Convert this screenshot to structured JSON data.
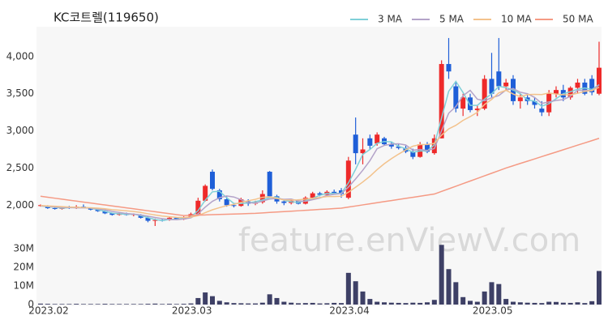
{
  "watermark": "feature.enViewV.com",
  "chart_data": [
    {
      "type": "candlestick",
      "title": "KC코트렐(119650)",
      "categories": [
        "2023.02",
        null,
        null,
        null,
        null,
        null,
        null,
        null,
        null,
        null,
        null,
        null,
        null,
        null,
        null,
        null,
        null,
        null,
        null,
        null,
        "2023.03",
        null,
        null,
        null,
        null,
        null,
        null,
        null,
        null,
        null,
        null,
        null,
        null,
        null,
        null,
        null,
        null,
        null,
        null,
        null,
        null,
        null,
        "2023.04",
        null,
        null,
        null,
        null,
        null,
        null,
        null,
        null,
        null,
        null,
        null,
        null,
        null,
        null,
        null,
        null,
        null,
        null,
        null,
        "2023.05",
        null,
        null,
        null,
        null,
        null,
        null,
        null,
        null,
        null,
        null,
        null,
        null,
        null,
        null,
        null,
        null
      ],
      "open": [
        1990,
        1990,
        1960,
        1950,
        1970,
        1960,
        1980,
        1960,
        1940,
        1920,
        1890,
        1870,
        1880,
        1870,
        1870,
        1830,
        1790,
        1800,
        1800,
        1830,
        1810,
        1840,
        1880,
        2060,
        2450,
        2200,
        2080,
        2000,
        1990,
        2050,
        2020,
        2040,
        2450,
        2120,
        2050,
        2030,
        2060,
        2020,
        2100,
        2160,
        2140,
        2180,
        2200,
        2100,
        2950,
        2700,
        2900,
        2830,
        2900,
        2820,
        2790,
        2770,
        2720,
        2650,
        2820,
        2700,
        2900,
        3900,
        3600,
        3300,
        3450,
        3280,
        3300,
        3700,
        3800,
        3600,
        3700,
        3400,
        3450,
        3400,
        3300,
        3250,
        3500,
        3550,
        3450,
        3580,
        3650,
        3700,
        3500
      ],
      "high": [
        2010,
        2000,
        1980,
        1980,
        1990,
        2000,
        2010,
        1970,
        1950,
        1930,
        1900,
        1900,
        1900,
        1890,
        1880,
        1850,
        1820,
        1820,
        1840,
        1840,
        1850,
        1900,
        2100,
        2280,
        2480,
        2220,
        2120,
        2020,
        2100,
        2080,
        2060,
        2200,
        2460,
        2140,
        2080,
        2080,
        2080,
        2120,
        2180,
        2180,
        2200,
        2210,
        2230,
        2650,
        3180,
        2900,
        2950,
        2980,
        2920,
        2850,
        2820,
        2800,
        2760,
        2850,
        2850,
        2950,
        3950,
        4250,
        3650,
        3500,
        3500,
        3350,
        3750,
        4050,
        4250,
        3700,
        3750,
        3500,
        3500,
        3450,
        3400,
        3550,
        3600,
        3620,
        3600,
        3700,
        3700,
        3750,
        4200
      ],
      "low": [
        1980,
        1950,
        1940,
        1940,
        1950,
        1950,
        1960,
        1930,
        1910,
        1880,
        1860,
        1860,
        1860,
        1850,
        1820,
        1770,
        1720,
        1780,
        1790,
        1800,
        1800,
        1830,
        1870,
        2050,
        2200,
        2050,
        1980,
        1970,
        1980,
        1990,
        2000,
        2020,
        2100,
        2020,
        2000,
        2010,
        2010,
        2010,
        2090,
        2120,
        2120,
        2140,
        2100,
        2080,
        2550,
        2550,
        2750,
        2800,
        2800,
        2760,
        2750,
        2700,
        2620,
        2640,
        2700,
        2680,
        2900,
        3700,
        3250,
        3200,
        3250,
        3200,
        3280,
        3450,
        3550,
        3550,
        3350,
        3300,
        3350,
        3300,
        3200,
        3200,
        3450,
        3400,
        3420,
        3500,
        3480,
        3480,
        3480
      ],
      "close": [
        2000,
        1960,
        1950,
        1970,
        1960,
        1980,
        1960,
        1940,
        1920,
        1890,
        1870,
        1890,
        1870,
        1880,
        1830,
        1790,
        1800,
        1790,
        1830,
        1810,
        1840,
        1880,
        2060,
        2260,
        2220,
        2080,
        2000,
        1990,
        2080,
        2020,
        2040,
        2150,
        2120,
        2050,
        2030,
        2060,
        2020,
        2100,
        2160,
        2140,
        2180,
        2150,
        2150,
        2600,
        2700,
        2750,
        2800,
        2950,
        2820,
        2790,
        2770,
        2720,
        2650,
        2820,
        2720,
        2900,
        3900,
        3800,
        3300,
        3450,
        3280,
        3300,
        3700,
        3500,
        3600,
        3650,
        3400,
        3450,
        3400,
        3350,
        3250,
        3500,
        3550,
        3450,
        3580,
        3650,
        3500,
        3520,
        3850
      ],
      "up_color": "#ee2a2a",
      "down_color": "#1f5fd8",
      "series": [
        {
          "name": "3 MA",
          "color": "#7fd0d8",
          "values": [
            1990,
            1980,
            1970,
            1960,
            1967,
            1970,
            1967,
            1960,
            1940,
            1917,
            1893,
            1883,
            1877,
            1880,
            1860,
            1833,
            1807,
            1793,
            1807,
            1810,
            1827,
            1843,
            1927,
            2067,
            2180,
            2187,
            2100,
            2023,
            2023,
            2030,
            2047,
            2070,
            2103,
            2107,
            2067,
            2047,
            2037,
            2060,
            2093,
            2133,
            2160,
            2157,
            2160,
            2300,
            2483,
            2683,
            2750,
            2833,
            2857,
            2853,
            2793,
            2760,
            2713,
            2730,
            2730,
            2813,
            3173,
            3533,
            3667,
            3517,
            3343,
            3343,
            3427,
            3500,
            3600,
            3583,
            3550,
            3500,
            3417,
            3400,
            3333,
            3367,
            3433,
            3500,
            3527,
            3560,
            3577,
            3557,
            3623
          ]
        },
        {
          "name": "5 MA",
          "color": "#b4a3c9",
          "values": [
            1990,
            1985,
            1975,
            1970,
            1968,
            1964,
            1964,
            1962,
            1950,
            1938,
            1916,
            1902,
            1888,
            1880,
            1868,
            1852,
            1834,
            1818,
            1808,
            1804,
            1814,
            1830,
            1884,
            1974,
            2052,
            2100,
            2124,
            2110,
            2074,
            2034,
            2026,
            2056,
            2082,
            2092,
            2078,
            2082,
            2056,
            2052,
            2074,
            2096,
            2132,
            2146,
            2156,
            2244,
            2354,
            2470,
            2600,
            2760,
            2804,
            2822,
            2826,
            2810,
            2740,
            2750,
            2736,
            2762,
            3002,
            3238,
            3328,
            3474,
            3546,
            3426,
            3406,
            3446,
            3476,
            3550,
            3570,
            3520,
            3500,
            3450,
            3370,
            3390,
            3410,
            3420,
            3466,
            3546,
            3546,
            3540,
            3620
          ]
        },
        {
          "name": "10 MA",
          "color": "#f3c28c",
          "values": [
            1995,
            1990,
            1985,
            1980,
            1975,
            1972,
            1968,
            1965,
            1960,
            1952,
            1939,
            1932,
            1924,
            1915,
            1902,
            1884,
            1868,
            1853,
            1844,
            1836,
            1833,
            1840,
            1860,
            1899,
            1938,
            1967,
            1993,
            2012,
            2038,
            2059,
            2079,
            2106,
            2112,
            2091,
            2072,
            2070,
            2072,
            2083,
            2091,
            2103,
            2117,
            2117,
            2120,
            2175,
            2242,
            2312,
            2389,
            2478,
            2558,
            2626,
            2687,
            2744,
            2794,
            2815,
            2817,
            2832,
            2942,
            3027,
            3075,
            3141,
            3192,
            3250,
            3355,
            3423,
            3511,
            3546,
            3496,
            3461,
            3489,
            3492,
            3489,
            3510,
            3495,
            3488,
            3486,
            3506,
            3531,
            3543,
            3588
          ]
        },
        {
          "name": "50 MA",
          "color": "#f59a84",
          "values": [
            2120,
            2107,
            2094,
            2081,
            2068,
            2055,
            2042,
            2029,
            2016,
            2003,
            1990,
            1977,
            1964,
            1951,
            1938,
            1925,
            1912,
            1899,
            1886,
            1873,
            1860,
            1863,
            1866,
            1869,
            1872,
            1875,
            1878,
            1881,
            1884,
            1887,
            1890,
            1896,
            1902,
            1908,
            1913,
            1919,
            1925,
            1931,
            1937,
            1943,
            1948,
            1954,
            1960,
            1975,
            1989,
            2004,
            2018,
            2033,
            2048,
            2062,
            2077,
            2092,
            2106,
            2121,
            2135,
            2150,
            2185,
            2220,
            2255,
            2290,
            2325,
            2360,
            2395,
            2430,
            2465,
            2500,
            2531,
            2562,
            2592,
            2623,
            2654,
            2685,
            2715,
            2746,
            2777,
            2808,
            2838,
            2869,
            2900
          ]
        }
      ],
      "ylim": [
        1600,
        4380
      ],
      "yticks": [
        {
          "value": 2000,
          "label": "2,000"
        },
        {
          "value": 2500,
          "label": "2,500"
        },
        {
          "value": 3000,
          "label": "3,000"
        },
        {
          "value": 3500,
          "label": "3,500"
        },
        {
          "value": 4000,
          "label": "4,000"
        }
      ],
      "grid": false
    },
    {
      "type": "bar",
      "color": "#3e4066",
      "values": [
        500000,
        400000,
        300000,
        300000,
        300000,
        400000,
        300000,
        300000,
        300000,
        400000,
        300000,
        300000,
        300000,
        300000,
        300000,
        400000,
        500000,
        300000,
        400000,
        300000,
        400000,
        600000,
        3500000,
        6500000,
        4500000,
        2000000,
        1200000,
        800000,
        700000,
        600000,
        600000,
        1000000,
        5500000,
        3500000,
        1500000,
        1000000,
        700000,
        800000,
        900000,
        600000,
        700000,
        900000,
        800000,
        17000000,
        12500000,
        7000000,
        3000000,
        1500000,
        1200000,
        1000000,
        900000,
        800000,
        1000000,
        900000,
        1200000,
        2500000,
        32000000,
        19000000,
        12000000,
        4000000,
        2000000,
        1500000,
        7000000,
        12000000,
        11000000,
        3000000,
        1500000,
        1200000,
        1000000,
        900000,
        800000,
        1500000,
        1400000,
        1000000,
        900000,
        1200000,
        800000,
        1800000,
        18000000
      ],
      "ylim": [
        0,
        33000000
      ],
      "yticks": [
        0,
        {
          "value": 10000000,
          "label": "10M"
        },
        {
          "value": 20000000,
          "label": "20M"
        },
        {
          "value": 30000000,
          "label": "30M"
        }
      ],
      "grid": false
    }
  ]
}
